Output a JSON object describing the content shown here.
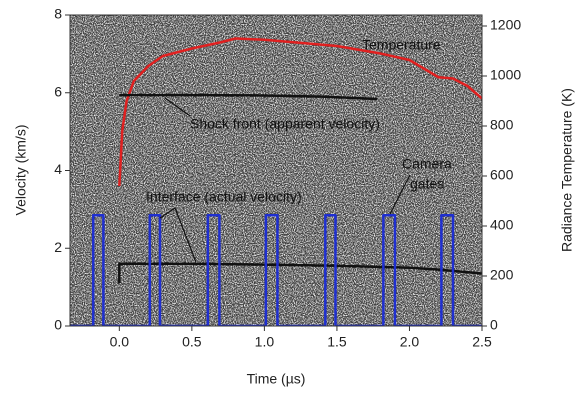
{
  "chart_data": {
    "type": "line",
    "xlabel": "Time (µs)",
    "ylabel": "Velocity (km/s)",
    "y2label": "Radiance Temperature (K)",
    "xlim": [
      -0.34,
      2.5
    ],
    "xticks": [
      {
        "value": 0,
        "label": "0.0"
      },
      0.5,
      {
        "value": 1,
        "label": "1.0"
      },
      1.5,
      {
        "value": 2,
        "label": "2.0"
      },
      2.5
    ],
    "ylim": [
      0,
      8
    ],
    "yticks": [
      0,
      2,
      4,
      6,
      8
    ],
    "y2lim": [
      0,
      1244
    ],
    "y2ticks": [
      0,
      200,
      400,
      600,
      800,
      1000,
      1200
    ],
    "series": [
      {
        "color": "#e02020",
        "axis": "y2",
        "x": [
          0.0,
          0.02,
          0.05,
          0.1,
          0.2,
          0.3,
          0.5,
          0.7,
          0.8,
          1.0,
          1.2,
          1.5,
          1.8,
          2.0,
          2.2,
          2.3,
          2.4,
          2.5
        ],
        "values": [
          560,
          780,
          900,
          980,
          1040,
          1080,
          1110,
          1135,
          1150,
          1145,
          1135,
          1120,
          1090,
          1064,
          995,
          990,
          960,
          910
        ]
      },
      {
        "color": "#111111",
        "axis": "y",
        "x": [
          0.0,
          0.5,
          1.0,
          1.4,
          1.78
        ],
        "values": [
          5.94,
          5.94,
          5.93,
          5.9,
          5.84
        ]
      },
      {
        "color": "#111111",
        "axis": "y",
        "x": [
          0.0,
          0.0,
          0.5,
          1.0,
          1.5,
          2.0,
          2.2,
          2.5
        ],
        "values": [
          1.1,
          1.6,
          1.6,
          1.58,
          1.55,
          1.5,
          1.45,
          1.35
        ]
      },
      {
        "color": "#1f2fd0",
        "axis": "y",
        "x": [
          -0.34,
          -0.18,
          -0.18,
          -0.11,
          -0.11,
          0.21,
          0.21,
          0.28,
          0.28,
          0.61,
          0.61,
          0.69,
          0.69,
          1.01,
          1.01,
          1.09,
          1.09,
          1.42,
          1.42,
          1.49,
          1.49,
          1.82,
          1.82,
          1.9,
          1.9,
          2.22,
          2.22,
          2.3,
          2.3,
          2.5
        ],
        "values": [
          0,
          0,
          2.85,
          2.85,
          0,
          0,
          2.85,
          2.85,
          0,
          0,
          2.85,
          2.85,
          0,
          0,
          2.85,
          2.85,
          0,
          0,
          2.85,
          2.85,
          0,
          0,
          2.85,
          2.85,
          0,
          0,
          2.85,
          2.85,
          0,
          0
        ]
      }
    ],
    "annotations": [
      "Temperature",
      "Shock front (apparent velocity)",
      "Interface (actual velocity)",
      "Camera",
      "gates"
    ]
  }
}
